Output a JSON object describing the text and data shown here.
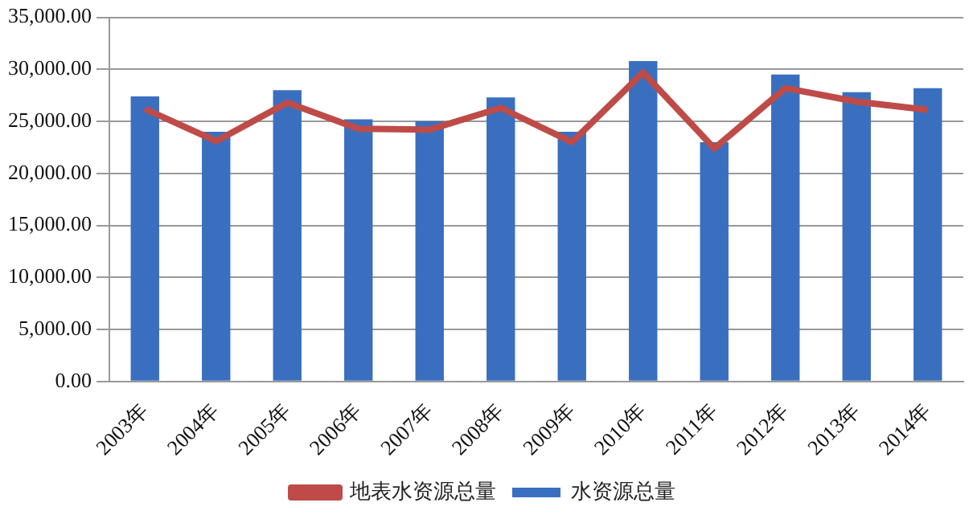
{
  "chart_data": {
    "type": "bar",
    "categories": [
      "2003年",
      "2004年",
      "2005年",
      "2006年",
      "2007年",
      "2008年",
      "2009年",
      "2010年",
      "2011年",
      "2012年",
      "2013年",
      "2014年"
    ],
    "series": [
      {
        "name": "水资源总量",
        "color": "#3a6fc0",
        "values": [
          27400,
          24000,
          28000,
          25200,
          25000,
          27300,
          24000,
          30800,
          23000,
          29500,
          27800,
          28200
        ]
      },
      {
        "name": "地表水资源总量",
        "type": "line",
        "color": "#be4b48",
        "values": [
          26200,
          23100,
          26800,
          24300,
          24200,
          26300,
          23000,
          29700,
          22400,
          28200,
          26900,
          26100
        ]
      }
    ],
    "ylim": [
      0,
      35000
    ],
    "yticks": [
      {
        "value": 0,
        "label": "0.00"
      },
      {
        "value": 5000,
        "label": "5,000.00"
      },
      {
        "value": 10000,
        "label": "10,000.00"
      },
      {
        "value": 15000,
        "label": "15,000.00"
      },
      {
        "value": 20000,
        "label": "20,000.00"
      },
      {
        "value": 25000,
        "label": "25,000.00"
      },
      {
        "value": 30000,
        "label": "30,000.00"
      },
      {
        "value": 35000,
        "label": "35,000.00"
      }
    ],
    "grid": "y",
    "legend": "bottom",
    "marker": "none"
  }
}
